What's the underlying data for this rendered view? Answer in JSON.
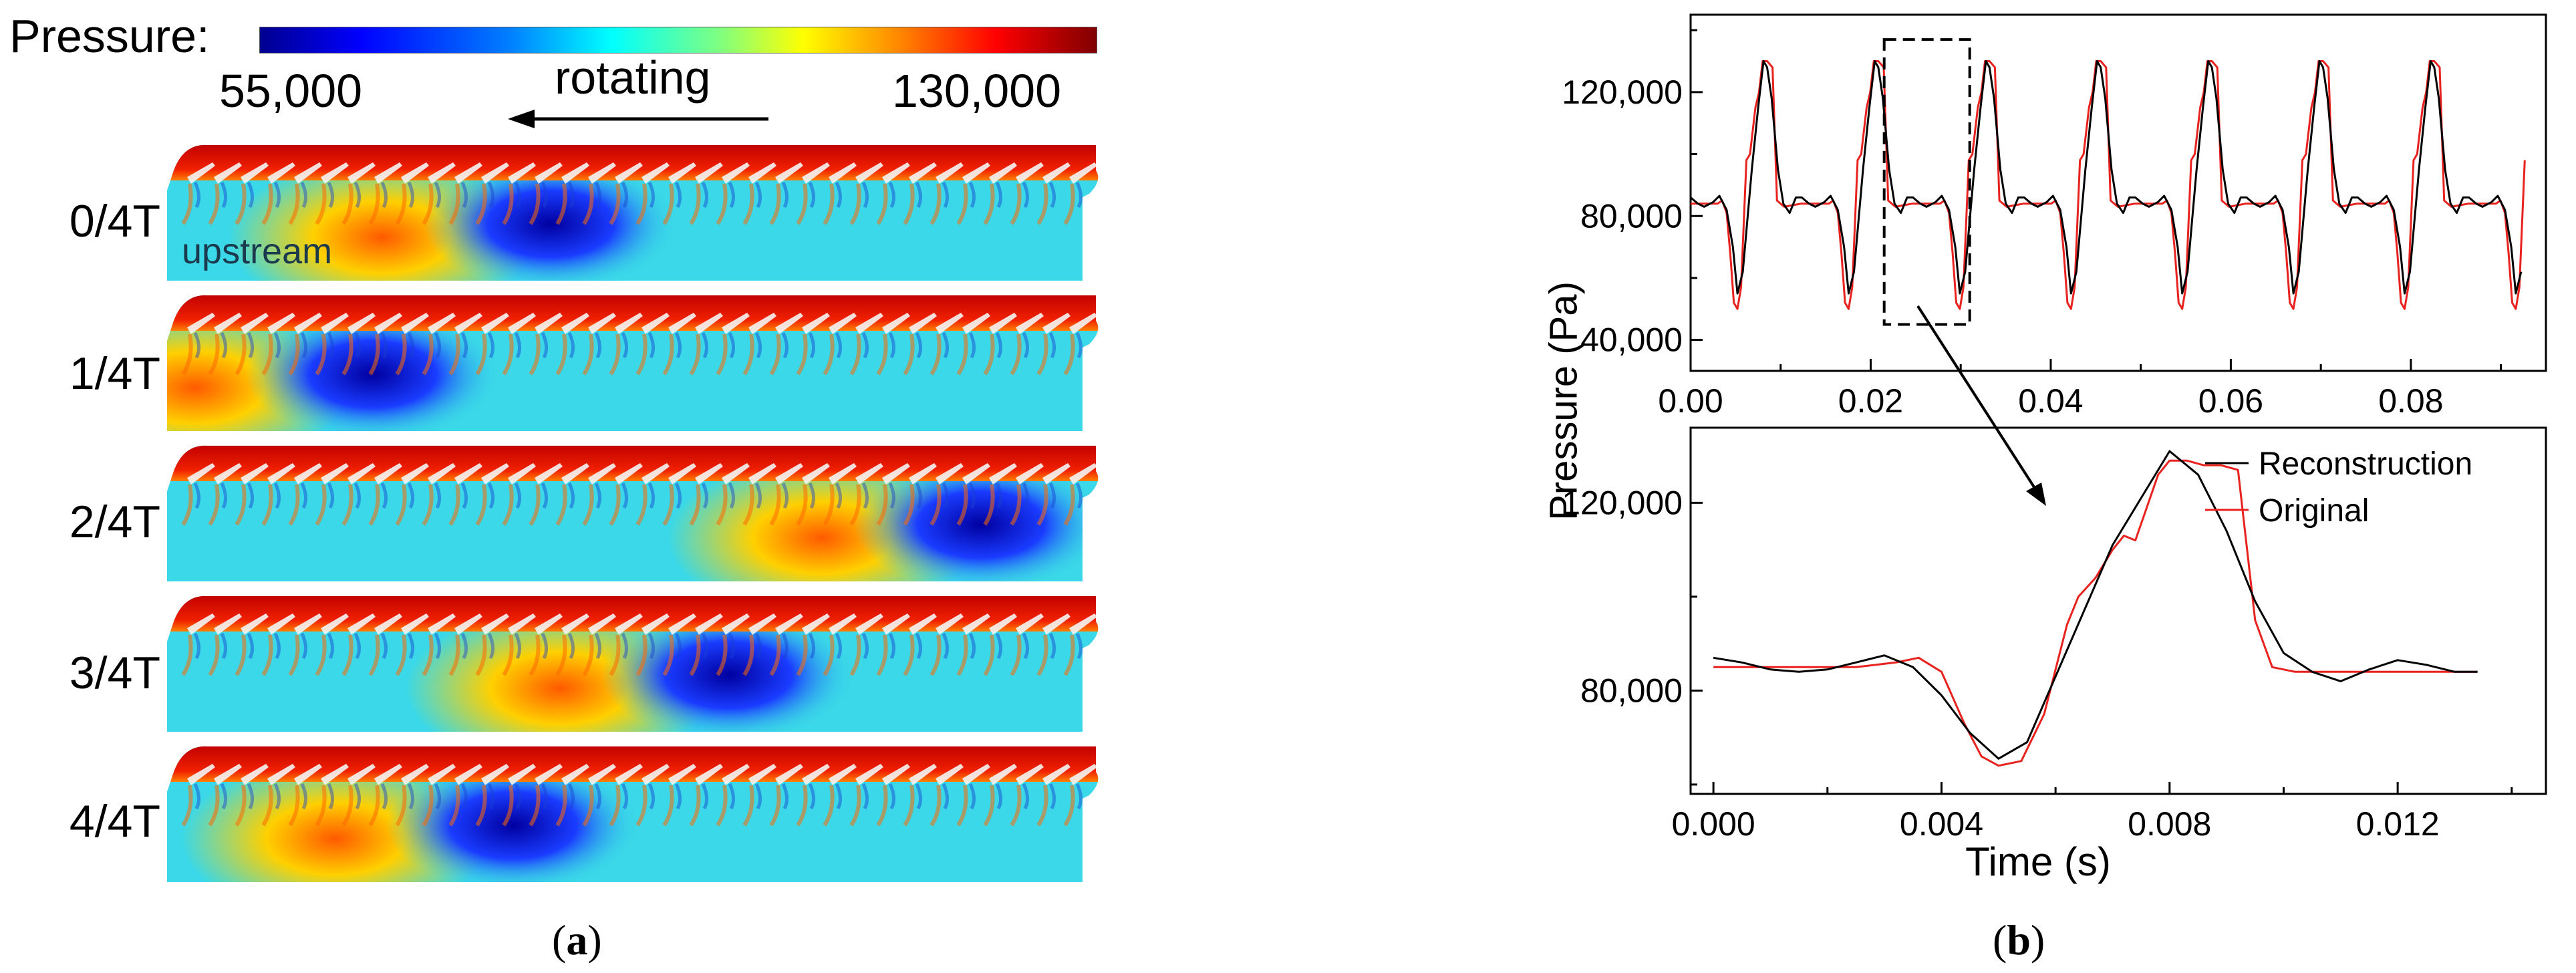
{
  "panel_a": {
    "colorbar": {
      "label": "Pressure:",
      "min": "55,000",
      "max": "130,000",
      "colormap": "jet"
    },
    "direction_label": "rotating",
    "region_label": "upstream",
    "rows": [
      {
        "label": "0/4T",
        "low_center": 0.41,
        "high_center": 0.23
      },
      {
        "label": "1/4T",
        "low_center": 0.22,
        "high_center": 0.03
      },
      {
        "label": "2/4T",
        "low_center": 0.87,
        "high_center": 0.7
      },
      {
        "label": "3/4T",
        "low_center": 0.6,
        "high_center": 0.42
      },
      {
        "label": "4/4T",
        "low_center": 0.37,
        "high_center": 0.18
      }
    ],
    "caption_open": "(",
    "caption_letter": "a",
    "caption_close": ")"
  },
  "panel_b": {
    "caption_open": "(",
    "caption_letter": "b",
    "caption_close": ")",
    "ylabel": "Pressure (Pa)",
    "xlabel": "Time (s)",
    "legend": {
      "reconstruction": "Reconstruction",
      "original": "Original"
    },
    "colors": {
      "reconstruction": "#000000",
      "original": "#e8231f"
    }
  },
  "chart_data": [
    {
      "type": "line",
      "xlim": [
        0.0,
        0.095
      ],
      "ylim": [
        30000,
        145000
      ],
      "xticks": [
        "0.00",
        "0.02",
        "0.04",
        "0.06",
        "0.08"
      ],
      "xtick_values": [
        0.0,
        0.02,
        0.04,
        0.06,
        0.08
      ],
      "yticks": [
        "40,000",
        "80,000",
        "120,000"
      ],
      "ytick_values": [
        40000,
        80000,
        120000
      ],
      "period": 0.01235,
      "zoom_box": {
        "x": [
          0.0215,
          0.031
        ],
        "y": [
          45000,
          137000
        ]
      },
      "series": [
        {
          "name": "Reconstruction",
          "cycle_points": [
            [
              0.0,
              86000
            ],
            [
              0.0008,
              84000
            ],
            [
              0.0015,
              83000
            ],
            [
              0.0025,
              84500
            ],
            [
              0.0032,
              86500
            ],
            [
              0.004,
              82000
            ],
            [
              0.0047,
              70000
            ],
            [
              0.0052,
              55000
            ],
            [
              0.0058,
              62000
            ],
            [
              0.0068,
              95000
            ],
            [
              0.0075,
              115000
            ],
            [
              0.0081,
              130000
            ],
            [
              0.0085,
              128000
            ],
            [
              0.009,
              118000
            ],
            [
              0.0097,
              95000
            ],
            [
              0.0103,
              84000
            ],
            [
              0.011,
              81000
            ],
            [
              0.0117,
              86000
            ],
            [
              0.0123,
              86000
            ]
          ]
        },
        {
          "name": "Original",
          "cycle_points": [
            [
              0.0,
              84000
            ],
            [
              0.001,
              84000
            ],
            [
              0.003,
              84000
            ],
            [
              0.0035,
              85000
            ],
            [
              0.004,
              81000
            ],
            [
              0.0044,
              68000
            ],
            [
              0.0048,
              52000
            ],
            [
              0.0052,
              50000
            ],
            [
              0.0056,
              57000
            ],
            [
              0.0062,
              98000
            ],
            [
              0.0066,
              100000
            ],
            [
              0.007,
              110000
            ],
            [
              0.0072,
              115000
            ],
            [
              0.0076,
              120000
            ],
            [
              0.008,
              130000
            ],
            [
              0.0085,
              130000
            ],
            [
              0.0091,
              128000
            ],
            [
              0.0096,
              85000
            ],
            [
              0.0104,
              83000
            ],
            [
              0.0123,
              84000
            ]
          ]
        }
      ]
    },
    {
      "type": "line",
      "xlim": [
        -0.0004,
        0.0146
      ],
      "ylim": [
        58000,
        136000
      ],
      "xticks": [
        "0.000",
        "0.004",
        "0.008",
        "0.012"
      ],
      "xtick_values": [
        0.0,
        0.004,
        0.008,
        0.012
      ],
      "yticks": [
        "80,000",
        "120,000"
      ],
      "ytick_values": [
        80000,
        120000
      ],
      "series": [
        {
          "name": "Reconstruction",
          "points": [
            [
              0.0,
              87000
            ],
            [
              0.0005,
              86000
            ],
            [
              0.001,
              84500
            ],
            [
              0.0015,
              84000
            ],
            [
              0.002,
              84500
            ],
            [
              0.0025,
              86000
            ],
            [
              0.003,
              87500
            ],
            [
              0.0035,
              85000
            ],
            [
              0.004,
              79000
            ],
            [
              0.0045,
              71000
            ],
            [
              0.005,
              65500
            ],
            [
              0.0055,
              69000
            ],
            [
              0.006,
              83000
            ],
            [
              0.0065,
              97000
            ],
            [
              0.007,
              111000
            ],
            [
              0.0075,
              121000
            ],
            [
              0.008,
              131000
            ],
            [
              0.0085,
              126000
            ],
            [
              0.009,
              114000
            ],
            [
              0.0095,
              99000
            ],
            [
              0.01,
              88000
            ],
            [
              0.0105,
              84000
            ],
            [
              0.011,
              82000
            ],
            [
              0.0115,
              84500
            ],
            [
              0.012,
              86500
            ],
            [
              0.0125,
              85500
            ],
            [
              0.013,
              84000
            ],
            [
              0.0134,
              84000
            ]
          ]
        },
        {
          "name": "Original",
          "points": [
            [
              0.0,
              85000
            ],
            [
              0.0015,
              85000
            ],
            [
              0.0025,
              85000
            ],
            [
              0.0032,
              86000
            ],
            [
              0.0036,
              87000
            ],
            [
              0.004,
              84000
            ],
            [
              0.0044,
              73000
            ],
            [
              0.0047,
              66000
            ],
            [
              0.005,
              64000
            ],
            [
              0.0054,
              65000
            ],
            [
              0.0058,
              75000
            ],
            [
              0.0062,
              94000
            ],
            [
              0.0064,
              100000
            ],
            [
              0.0067,
              104000
            ],
            [
              0.007,
              110000
            ],
            [
              0.0072,
              113000
            ],
            [
              0.0074,
              112000
            ],
            [
              0.0076,
              119000
            ],
            [
              0.0078,
              126000
            ],
            [
              0.008,
              129000
            ],
            [
              0.0083,
              129000
            ],
            [
              0.0086,
              128000
            ],
            [
              0.0089,
              128000
            ],
            [
              0.0092,
              127000
            ],
            [
              0.0095,
              95000
            ],
            [
              0.0098,
              85000
            ],
            [
              0.0102,
              84000
            ],
            [
              0.012,
              84000
            ],
            [
              0.0134,
              84000
            ]
          ]
        }
      ]
    }
  ]
}
